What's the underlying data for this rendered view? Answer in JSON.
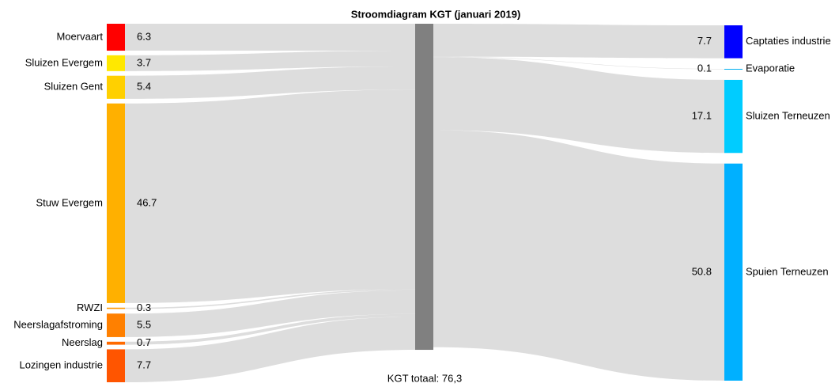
{
  "chart_data": {
    "type": "sankey",
    "title": "Stroomdiagram KGT (januari 2019)",
    "total_label": "KGT totaal: 76,3",
    "center_color": "#808080",
    "link_color": "#d9d9d9",
    "sources": [
      {
        "name": "Moervaart",
        "value": 6.3,
        "color": "#ff0000"
      },
      {
        "name": "Sluizen Evergem",
        "value": 3.7,
        "color": "#ffe800"
      },
      {
        "name": "Sluizen Gent",
        "value": 5.4,
        "color": "#ffd000"
      },
      {
        "name": "Stuw Evergem",
        "value": 46.7,
        "color": "#ffb000"
      },
      {
        "name": "RWZI",
        "value": 0.3,
        "color": "#ff9800"
      },
      {
        "name": "Neerslagafstroming",
        "value": 5.5,
        "color": "#ff8000"
      },
      {
        "name": "Neerslag",
        "value": 0.7,
        "color": "#ff6a00"
      },
      {
        "name": "Lozingen industrie",
        "value": 7.7,
        "color": "#ff5500"
      }
    ],
    "targets": [
      {
        "name": "Captaties industrie",
        "value": 7.7,
        "color": "#0000ff"
      },
      {
        "name": "Evaporatie",
        "value": 0.1,
        "color": "#00b0f0"
      },
      {
        "name": "Sluizen Terneuzen",
        "value": 17.1,
        "color": "#00ccff"
      },
      {
        "name": "Spuien Terneuzen",
        "value": 50.8,
        "color": "#00b0ff"
      }
    ]
  }
}
